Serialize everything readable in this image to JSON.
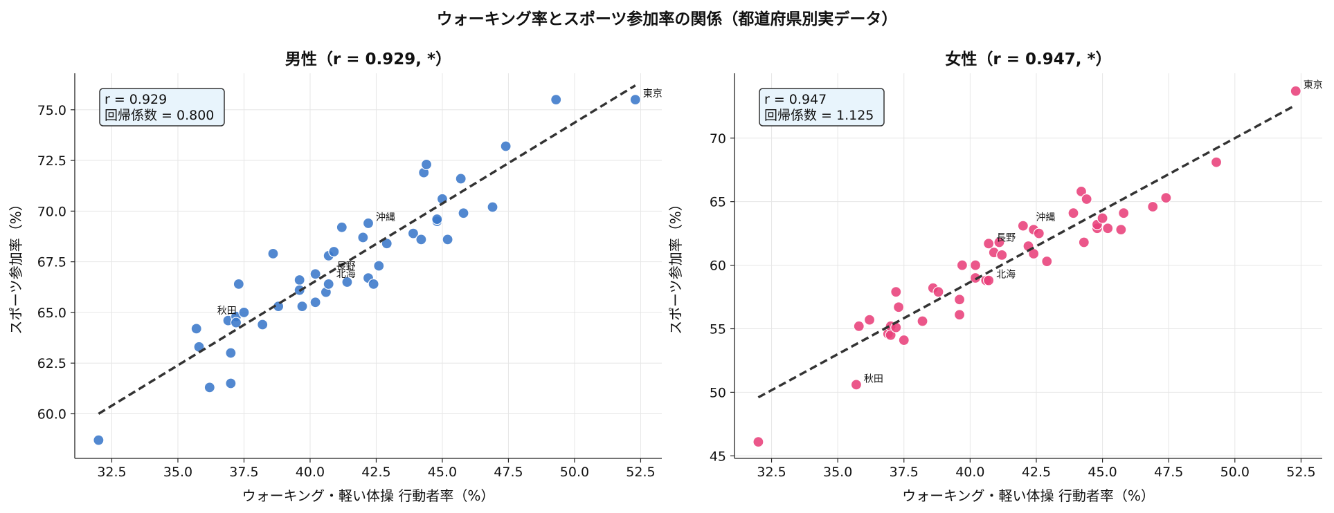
{
  "suptitle": "ウォーキング率とスポーツ参加率の関係（都道府県別実データ）",
  "colors": {
    "male": "#3a78c9",
    "female": "#e8407a",
    "regression": "#333333",
    "annot_bg": "#e8f4fc"
  },
  "chart_data": [
    {
      "type": "scatter",
      "title": "男性（r = 0.929, *）",
      "xlabel": "ウォーキング・軽い体操 行動者率（%）",
      "ylabel": "スポーツ参加率（%）",
      "xlim": [
        31.1,
        53.3
      ],
      "ylim": [
        57.8,
        76.8
      ],
      "xticks": [
        "32.5",
        "35.0",
        "37.5",
        "40.0",
        "42.5",
        "45.0",
        "47.5",
        "50.0",
        "52.5"
      ],
      "yticks": [
        "60.0",
        "62.5",
        "65.0",
        "67.5",
        "70.0",
        "72.5",
        "75.0"
      ],
      "grid": true,
      "color": "#3a78c9",
      "regression": {
        "x": [
          32.0,
          52.3
        ],
        "y": [
          60.0,
          76.2
        ]
      },
      "annotation": [
        "r = 0.929",
        "回帰係数 = 0.800"
      ],
      "points": [
        [
          32.0,
          58.7
        ],
        [
          35.7,
          64.2
        ],
        [
          35.8,
          63.3
        ],
        [
          36.2,
          61.3
        ],
        [
          36.9,
          64.6
        ],
        [
          37.0,
          63.0
        ],
        [
          37.0,
          61.5
        ],
        [
          37.2,
          64.8
        ],
        [
          37.3,
          66.4
        ],
        [
          37.2,
          64.5
        ],
        [
          37.5,
          65.0
        ],
        [
          38.2,
          64.4
        ],
        [
          38.6,
          67.9
        ],
        [
          38.8,
          65.3
        ],
        [
          39.6,
          66.6
        ],
        [
          39.6,
          66.1
        ],
        [
          39.7,
          65.3
        ],
        [
          40.2,
          66.9
        ],
        [
          40.2,
          65.5
        ],
        [
          40.6,
          66.0
        ],
        [
          40.7,
          66.4
        ],
        [
          40.7,
          67.8
        ],
        [
          40.9,
          68.0
        ],
        [
          41.2,
          69.2
        ],
        [
          41.4,
          66.5
        ],
        [
          42.0,
          68.7
        ],
        [
          42.2,
          69.4
        ],
        [
          42.2,
          66.7
        ],
        [
          42.4,
          66.4
        ],
        [
          42.6,
          67.3
        ],
        [
          42.9,
          68.4
        ],
        [
          43.9,
          68.9
        ],
        [
          44.2,
          68.6
        ],
        [
          44.3,
          71.9
        ],
        [
          44.4,
          72.3
        ],
        [
          44.8,
          69.5
        ],
        [
          44.8,
          69.6
        ],
        [
          45.0,
          70.6
        ],
        [
          45.2,
          68.6
        ],
        [
          45.7,
          71.6
        ],
        [
          45.8,
          69.9
        ],
        [
          46.9,
          70.2
        ],
        [
          47.4,
          73.2
        ],
        [
          49.3,
          75.5
        ],
        [
          52.3,
          75.5
        ]
      ],
      "labels": [
        {
          "text": "東京",
          "x": 52.3,
          "y": 75.5
        },
        {
          "text": "沖縄",
          "x": 42.2,
          "y": 69.4
        },
        {
          "text": "長野",
          "x": 40.7,
          "y": 67.0
        },
        {
          "text": "北海",
          "x": 40.7,
          "y": 66.6
        },
        {
          "text": "秋田",
          "x": 36.2,
          "y": 64.8
        }
      ]
    },
    {
      "type": "scatter",
      "title": "女性（r = 0.947, *）",
      "xlabel": "ウォーキング・軽い体操 行動者率（%）",
      "ylabel": "スポーツ参加率（%）",
      "xlim": [
        31.1,
        53.3
      ],
      "ylim": [
        44.8,
        75.1
      ],
      "xticks": [
        "32.5",
        "35.0",
        "37.5",
        "40.0",
        "42.5",
        "45.0",
        "47.5",
        "50.0",
        "52.5"
      ],
      "yticks": [
        "45",
        "50",
        "55",
        "60",
        "65",
        "70"
      ],
      "grid": true,
      "color": "#e8407a",
      "regression": {
        "x": [
          32.0,
          52.3
        ],
        "y": [
          49.6,
          72.6
        ]
      },
      "annotation": [
        "r = 0.947",
        "回帰係数 = 1.125"
      ],
      "points": [
        [
          32.0,
          46.1
        ],
        [
          35.7,
          50.6
        ],
        [
          35.8,
          55.2
        ],
        [
          36.2,
          55.7
        ],
        [
          36.9,
          54.6
        ],
        [
          37.0,
          55.2
        ],
        [
          37.0,
          54.5
        ],
        [
          37.2,
          55.1
        ],
        [
          37.2,
          57.9
        ],
        [
          37.3,
          56.7
        ],
        [
          37.5,
          54.1
        ],
        [
          38.2,
          55.6
        ],
        [
          38.6,
          58.2
        ],
        [
          38.8,
          57.9
        ],
        [
          39.6,
          56.1
        ],
        [
          39.6,
          57.3
        ],
        [
          39.7,
          60.0
        ],
        [
          40.2,
          60.0
        ],
        [
          40.2,
          59.0
        ],
        [
          40.6,
          58.8
        ],
        [
          40.7,
          58.8
        ],
        [
          40.7,
          61.7
        ],
        [
          40.9,
          61.0
        ],
        [
          41.1,
          61.8
        ],
        [
          41.2,
          60.8
        ],
        [
          42.0,
          63.1
        ],
        [
          42.2,
          61.5
        ],
        [
          42.4,
          62.8
        ],
        [
          42.4,
          60.9
        ],
        [
          42.6,
          62.5
        ],
        [
          42.9,
          60.3
        ],
        [
          43.9,
          64.1
        ],
        [
          44.2,
          65.8
        ],
        [
          44.3,
          61.8
        ],
        [
          44.4,
          65.2
        ],
        [
          44.8,
          62.9
        ],
        [
          44.8,
          63.2
        ],
        [
          45.0,
          63.7
        ],
        [
          45.2,
          62.9
        ],
        [
          45.7,
          62.8
        ],
        [
          45.8,
          64.1
        ],
        [
          46.9,
          64.6
        ],
        [
          47.4,
          65.3
        ],
        [
          49.3,
          68.1
        ],
        [
          52.3,
          73.7
        ]
      ],
      "labels": [
        {
          "text": "東京",
          "x": 52.3,
          "y": 73.7
        },
        {
          "text": "沖縄",
          "x": 42.2,
          "y": 63.3
        },
        {
          "text": "長野",
          "x": 40.7,
          "y": 61.7
        },
        {
          "text": "北海",
          "x": 40.7,
          "y": 58.8
        },
        {
          "text": "秋田",
          "x": 35.7,
          "y": 50.6
        }
      ]
    }
  ]
}
